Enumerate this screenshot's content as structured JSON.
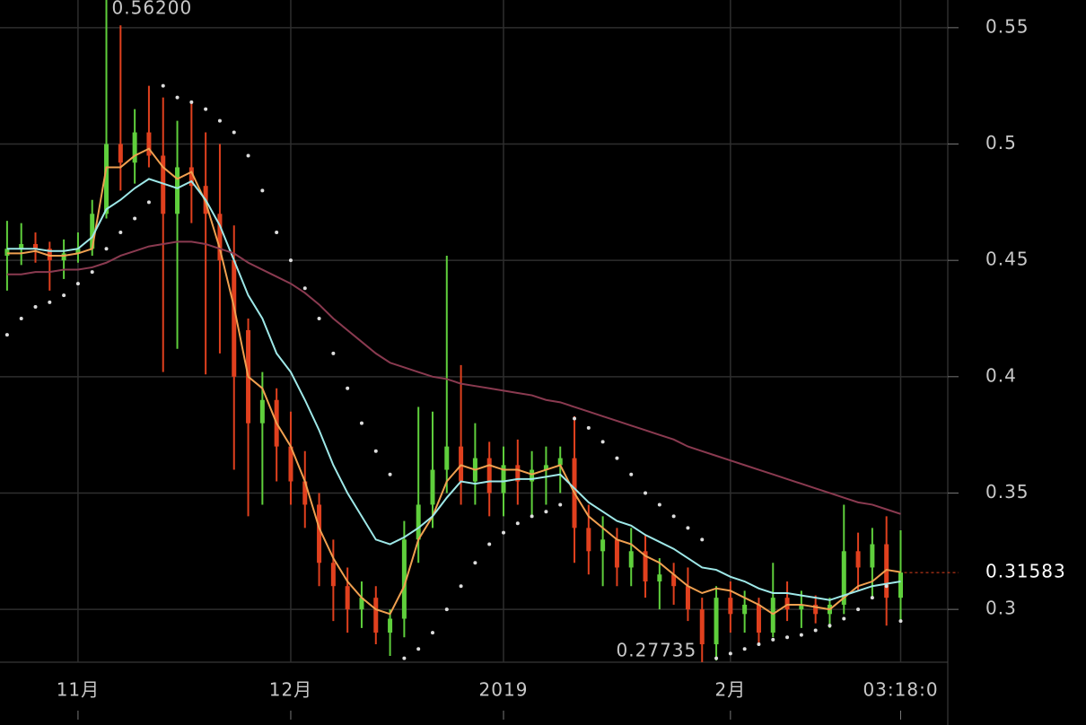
{
  "chart_data": {
    "type": "candlestick",
    "categories": [
      null,
      null,
      null,
      null,
      null,
      "11月",
      null,
      null,
      null,
      null,
      null,
      null,
      null,
      null,
      null,
      null,
      null,
      null,
      null,
      null,
      "12月",
      null,
      null,
      null,
      null,
      null,
      null,
      null,
      null,
      null,
      null,
      null,
      null,
      null,
      null,
      "2019",
      null,
      null,
      null,
      null,
      null,
      null,
      null,
      null,
      null,
      null,
      null,
      null,
      null,
      null,
      null,
      "2月",
      null,
      null,
      null,
      null,
      null,
      null,
      null,
      null,
      null,
      null,
      null,
      "03:18:0"
    ],
    "open": [
      0.452,
      0.455,
      0.457,
      0.455,
      0.45,
      0.453,
      0.455,
      0.47,
      0.5,
      0.492,
      0.505,
      0.495,
      0.47,
      0.49,
      0.482,
      0.47,
      0.45,
      0.42,
      0.38,
      0.39,
      0.37,
      0.355,
      0.345,
      0.32,
      0.31,
      0.3,
      0.305,
      0.29,
      0.296,
      0.33,
      0.345,
      0.36,
      0.37,
      0.355,
      0.365,
      0.35,
      0.362,
      0.355,
      0.36,
      0.362,
      0.365,
      0.335,
      0.325,
      0.33,
      0.318,
      0.325,
      0.312,
      0.315,
      0.31,
      0.3,
      0.285,
      0.305,
      0.298,
      0.302,
      0.29,
      0.305,
      0.3,
      0.302,
      0.298,
      0.302,
      0.325,
      0.318,
      0.328,
      0.305
    ],
    "high": [
      0.467,
      0.466,
      0.462,
      0.458,
      0.459,
      0.462,
      0.476,
      0.562,
      0.551,
      0.515,
      0.525,
      0.52,
      0.51,
      0.518,
      0.505,
      0.5,
      0.465,
      0.425,
      0.402,
      0.395,
      0.385,
      0.368,
      0.35,
      0.33,
      0.318,
      0.312,
      0.31,
      0.3,
      0.338,
      0.387,
      0.385,
      0.452,
      0.405,
      0.38,
      0.372,
      0.37,
      0.373,
      0.368,
      0.37,
      0.37,
      0.383,
      0.345,
      0.34,
      0.335,
      0.335,
      0.332,
      0.322,
      0.32,
      0.318,
      0.305,
      0.31,
      0.312,
      0.308,
      0.305,
      0.32,
      0.312,
      0.308,
      0.306,
      0.305,
      0.345,
      0.333,
      0.335,
      0.34,
      0.334
    ],
    "low": [
      0.437,
      0.448,
      0.449,
      0.437,
      0.442,
      0.449,
      0.452,
      0.468,
      0.48,
      0.483,
      0.49,
      0.402,
      0.412,
      0.466,
      0.401,
      0.41,
      0.36,
      0.34,
      0.345,
      0.355,
      0.345,
      0.335,
      0.31,
      0.295,
      0.29,
      0.292,
      0.285,
      0.28,
      0.288,
      0.32,
      0.335,
      0.35,
      0.345,
      0.345,
      0.34,
      0.34,
      0.345,
      0.34,
      0.345,
      0.35,
      0.32,
      0.315,
      0.31,
      0.31,
      0.31,
      0.305,
      0.3,
      0.302,
      0.295,
      0.27735,
      0.278,
      0.29,
      0.29,
      0.285,
      0.288,
      0.295,
      0.292,
      0.294,
      0.292,
      0.298,
      0.308,
      0.305,
      0.293,
      0.295
    ],
    "close": [
      0.455,
      0.457,
      0.455,
      0.45,
      0.453,
      0.455,
      0.47,
      0.5,
      0.492,
      0.505,
      0.495,
      0.47,
      0.49,
      0.482,
      0.47,
      0.45,
      0.4,
      0.38,
      0.39,
      0.37,
      0.355,
      0.345,
      0.32,
      0.31,
      0.3,
      0.305,
      0.29,
      0.296,
      0.33,
      0.345,
      0.36,
      0.37,
      0.355,
      0.365,
      0.35,
      0.362,
      0.355,
      0.36,
      0.362,
      0.365,
      0.335,
      0.325,
      0.33,
      0.318,
      0.325,
      0.312,
      0.315,
      0.31,
      0.3,
      0.285,
      0.305,
      0.298,
      0.302,
      0.29,
      0.305,
      0.3,
      0.302,
      0.298,
      0.302,
      0.325,
      0.318,
      0.328,
      0.305,
      0.31583
    ],
    "up_color": "#5fcf3c",
    "down_color": "#e0401e",
    "lines": [
      {
        "color": "#f0a050",
        "values": [
          0.453,
          0.453,
          0.454,
          0.452,
          0.452,
          0.453,
          0.455,
          0.49,
          0.49,
          0.495,
          0.498,
          0.49,
          0.485,
          0.488,
          0.475,
          0.455,
          0.43,
          0.4,
          0.395,
          0.38,
          0.37,
          0.355,
          0.335,
          0.322,
          0.312,
          0.305,
          0.3,
          0.298,
          0.31,
          0.33,
          0.34,
          0.355,
          0.362,
          0.36,
          0.362,
          0.36,
          0.36,
          0.358,
          0.36,
          0.362,
          0.35,
          0.34,
          0.335,
          0.33,
          0.328,
          0.323,
          0.32,
          0.315,
          0.31,
          0.307,
          0.309,
          0.308,
          0.305,
          0.302,
          0.298,
          0.302,
          0.302,
          0.301,
          0.3,
          0.305,
          0.31,
          0.312,
          0.317,
          0.316
        ]
      },
      {
        "color": "#9ee8e8",
        "values": [
          0.455,
          0.455,
          0.455,
          0.454,
          0.454,
          0.455,
          0.46,
          0.472,
          0.476,
          0.481,
          0.485,
          0.483,
          0.481,
          0.484,
          0.476,
          0.465,
          0.45,
          0.435,
          0.425,
          0.41,
          0.402,
          0.39,
          0.377,
          0.362,
          0.35,
          0.34,
          0.33,
          0.328,
          0.331,
          0.335,
          0.34,
          0.348,
          0.355,
          0.354,
          0.355,
          0.355,
          0.356,
          0.356,
          0.357,
          0.358,
          0.352,
          0.346,
          0.342,
          0.338,
          0.336,
          0.332,
          0.329,
          0.326,
          0.322,
          0.318,
          0.317,
          0.314,
          0.312,
          0.309,
          0.307,
          0.307,
          0.306,
          0.305,
          0.304,
          0.306,
          0.308,
          0.31,
          0.311,
          0.312
        ]
      },
      {
        "color": "#8a3a50",
        "values": [
          0.444,
          0.444,
          0.445,
          0.445,
          0.446,
          0.446,
          0.447,
          0.449,
          0.452,
          0.454,
          0.456,
          0.457,
          0.458,
          0.458,
          0.457,
          0.455,
          0.453,
          0.449,
          0.446,
          0.443,
          0.44,
          0.436,
          0.431,
          0.425,
          0.42,
          0.415,
          0.41,
          0.406,
          0.404,
          0.402,
          0.4,
          0.399,
          0.397,
          0.396,
          0.395,
          0.394,
          0.393,
          0.392,
          0.39,
          0.389,
          0.387,
          0.385,
          0.383,
          0.381,
          0.379,
          0.377,
          0.375,
          0.373,
          0.37,
          0.368,
          0.366,
          0.364,
          0.362,
          0.36,
          0.358,
          0.356,
          0.354,
          0.352,
          0.35,
          0.348,
          0.346,
          0.345,
          0.343,
          0.341
        ]
      }
    ],
    "sar": {
      "color": "#dddddd",
      "values": [
        0.418,
        0.425,
        0.43,
        0.432,
        0.435,
        0.44,
        0.445,
        0.455,
        0.462,
        0.468,
        0.475,
        0.525,
        0.52,
        0.518,
        0.515,
        0.51,
        0.505,
        0.495,
        0.48,
        0.462,
        0.45,
        0.438,
        0.425,
        0.41,
        0.395,
        0.38,
        0.368,
        0.358,
        0.279,
        0.283,
        0.29,
        0.3,
        0.31,
        0.32,
        0.328,
        0.333,
        0.337,
        0.34,
        0.342,
        0.345,
        0.382,
        0.378,
        0.372,
        0.365,
        0.358,
        0.35,
        0.345,
        0.34,
        0.335,
        0.33,
        0.279,
        0.281,
        0.283,
        0.285,
        0.287,
        0.288,
        0.289,
        0.291,
        0.293,
        0.296,
        0.3,
        0.305,
        0.31,
        0.295
      ]
    },
    "ylim": [
      0.2773,
      0.5619
    ],
    "yticks": [
      0.3,
      0.35,
      0.4,
      0.45,
      0.5,
      0.55
    ],
    "grid": true,
    "max_label": {
      "value": 0.562,
      "label": "0.56200"
    },
    "min_label": 0.27735,
    "last_price": 0.31583
  }
}
